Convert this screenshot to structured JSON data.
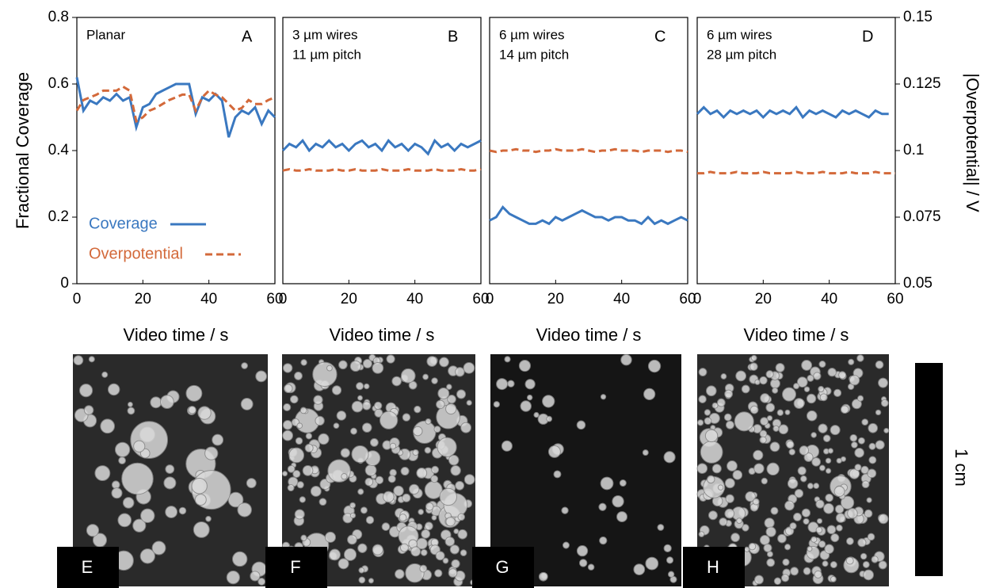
{
  "chart_data": [
    {
      "type": "line",
      "label": "A",
      "annotations": [
        "Planar"
      ],
      "xlabel": "Video time / s",
      "ylabel": "Fractional Coverage",
      "x": [
        0,
        2,
        4,
        6,
        8,
        10,
        12,
        14,
        16,
        18,
        20,
        22,
        24,
        26,
        28,
        30,
        32,
        34,
        36,
        38,
        40,
        42,
        44,
        46,
        48,
        50,
        52,
        54,
        56,
        58,
        60
      ],
      "xlim": [
        0,
        60
      ],
      "xticks": [
        0,
        20,
        40,
        60
      ],
      "ylim": [
        0,
        0.8
      ],
      "yticks": [
        0,
        0.2,
        0.4,
        0.6,
        0.8
      ],
      "y2lim": [
        0.05,
        0.15
      ],
      "legend": "lower left",
      "series": [
        {
          "name": "Coverage",
          "color": "#3a78c0",
          "style": "solid",
          "values": [
            0.62,
            0.52,
            0.55,
            0.54,
            0.56,
            0.55,
            0.57,
            0.55,
            0.56,
            0.47,
            0.53,
            0.54,
            0.57,
            0.58,
            0.59,
            0.6,
            0.6,
            0.6,
            0.51,
            0.56,
            0.55,
            0.57,
            0.55,
            0.44,
            0.5,
            0.52,
            0.51,
            0.53,
            0.48,
            0.52,
            0.5
          ]
        },
        {
          "name": "Overpotential",
          "color": "#d3693a",
          "style": "dashed",
          "axis": "y2",
          "values": [
            0.115,
            0.119,
            0.12,
            0.121,
            0.1225,
            0.1225,
            0.1225,
            0.124,
            0.1225,
            0.111,
            0.1125,
            0.115,
            0.116,
            0.1175,
            0.119,
            0.12,
            0.121,
            0.121,
            0.115,
            0.12,
            0.1225,
            0.121,
            0.12,
            0.1175,
            0.115,
            0.116,
            0.119,
            0.1175,
            0.1175,
            0.119,
            0.12
          ]
        }
      ]
    },
    {
      "type": "line",
      "label": "B",
      "annotations": [
        "3 µm wires",
        "11 µm pitch"
      ],
      "xlabel": "Video time / s",
      "x": [
        0,
        2,
        4,
        6,
        8,
        10,
        12,
        14,
        16,
        18,
        20,
        22,
        24,
        26,
        28,
        30,
        32,
        34,
        36,
        38,
        40,
        42,
        44,
        46,
        48,
        50,
        52,
        54,
        56,
        58,
        60
      ],
      "xlim": [
        0,
        60
      ],
      "xticks": [
        0,
        20,
        40,
        60
      ],
      "ylim": [
        0,
        0.8
      ],
      "y2lim": [
        0.05,
        0.15
      ],
      "series": [
        {
          "color": "#3a78c0",
          "style": "solid",
          "values": [
            0.4,
            0.42,
            0.41,
            0.43,
            0.4,
            0.42,
            0.41,
            0.43,
            0.41,
            0.42,
            0.4,
            0.42,
            0.43,
            0.41,
            0.42,
            0.4,
            0.43,
            0.41,
            0.42,
            0.4,
            0.42,
            0.41,
            0.39,
            0.43,
            0.41,
            0.42,
            0.4,
            0.42,
            0.41,
            0.42,
            0.43
          ]
        },
        {
          "color": "#d3693a",
          "style": "dashed",
          "axis": "y2",
          "values": [
            0.0925,
            0.093,
            0.0925,
            0.0925,
            0.093,
            0.0925,
            0.0925,
            0.0925,
            0.093,
            0.0925,
            0.0925,
            0.093,
            0.0925,
            0.0925,
            0.0925,
            0.093,
            0.0925,
            0.0925,
            0.0925,
            0.093,
            0.0925,
            0.0925,
            0.0925,
            0.093,
            0.0925,
            0.0925,
            0.0925,
            0.093,
            0.0925,
            0.0925,
            0.093
          ]
        }
      ]
    },
    {
      "type": "line",
      "label": "C",
      "annotations": [
        "6 µm wires",
        "14 µm pitch"
      ],
      "xlabel": "Video time / s",
      "x": [
        0,
        2,
        4,
        6,
        8,
        10,
        12,
        14,
        16,
        18,
        20,
        22,
        24,
        26,
        28,
        30,
        32,
        34,
        36,
        38,
        40,
        42,
        44,
        46,
        48,
        50,
        52,
        54,
        56,
        58,
        60
      ],
      "xlim": [
        0,
        60
      ],
      "xticks": [
        0,
        20,
        40,
        60
      ],
      "ylim": [
        0,
        0.8
      ],
      "y2lim": [
        0.05,
        0.15
      ],
      "series": [
        {
          "color": "#3a78c0",
          "style": "solid",
          "values": [
            0.19,
            0.2,
            0.23,
            0.21,
            0.2,
            0.19,
            0.18,
            0.18,
            0.19,
            0.18,
            0.2,
            0.19,
            0.2,
            0.21,
            0.22,
            0.21,
            0.2,
            0.2,
            0.19,
            0.2,
            0.2,
            0.19,
            0.19,
            0.18,
            0.2,
            0.18,
            0.19,
            0.18,
            0.19,
            0.2,
            0.19
          ]
        },
        {
          "color": "#d3693a",
          "style": "dashed",
          "axis": "y2",
          "values": [
            0.1,
            0.0995,
            0.1,
            0.1,
            0.1005,
            0.1,
            0.1,
            0.0995,
            0.1,
            0.1,
            0.1005,
            0.1,
            0.1,
            0.1,
            0.1005,
            0.1,
            0.0995,
            0.1,
            0.1,
            0.1005,
            0.1,
            0.1,
            0.1,
            0.0995,
            0.1,
            0.1,
            0.1,
            0.0995,
            0.1,
            0.1,
            0.0995
          ]
        }
      ]
    },
    {
      "type": "line",
      "label": "D",
      "annotations": [
        "6 µm wires",
        "28 µm pitch"
      ],
      "xlabel": "Video time / s",
      "y2label": "|Overpotential| / V",
      "x": [
        0,
        2,
        4,
        6,
        8,
        10,
        12,
        14,
        16,
        18,
        20,
        22,
        24,
        26,
        28,
        30,
        32,
        34,
        36,
        38,
        40,
        42,
        44,
        46,
        48,
        50,
        52,
        54,
        56,
        58,
        60
      ],
      "xlim": [
        0,
        60
      ],
      "xticks": [
        0,
        20,
        40,
        60
      ],
      "ylim": [
        0,
        0.8
      ],
      "y2lim": [
        0.05,
        0.15
      ],
      "y2ticks": [
        0.05,
        0.075,
        0.1,
        0.125,
        0.15
      ],
      "series": [
        {
          "color": "#3a78c0",
          "style": "solid",
          "values": [
            0.51,
            0.53,
            0.51,
            0.52,
            0.5,
            0.52,
            0.51,
            0.52,
            0.51,
            0.52,
            0.5,
            0.52,
            0.51,
            0.52,
            0.51,
            0.53,
            0.5,
            0.52,
            0.51,
            0.52,
            0.51,
            0.5,
            0.52,
            0.51,
            0.52,
            0.51,
            0.5,
            0.52,
            0.51,
            0.51,
            null
          ]
        },
        {
          "color": "#d3693a",
          "style": "dashed",
          "axis": "y2",
          "values": [
            0.0915,
            0.0915,
            0.092,
            0.0915,
            0.0915,
            0.0915,
            0.092,
            0.0915,
            0.0915,
            0.0915,
            0.092,
            0.0915,
            0.0915,
            0.0915,
            0.0915,
            0.092,
            0.0915,
            0.0915,
            0.0915,
            0.092,
            0.0915,
            0.0915,
            0.0915,
            0.092,
            0.0915,
            0.0915,
            0.0915,
            0.092,
            0.0915,
            0.0915,
            0.0915
          ]
        }
      ]
    }
  ],
  "images": [
    {
      "label": "E"
    },
    {
      "label": "F"
    },
    {
      "label": "G"
    },
    {
      "label": "H"
    }
  ],
  "scale_bar": "1 cm"
}
